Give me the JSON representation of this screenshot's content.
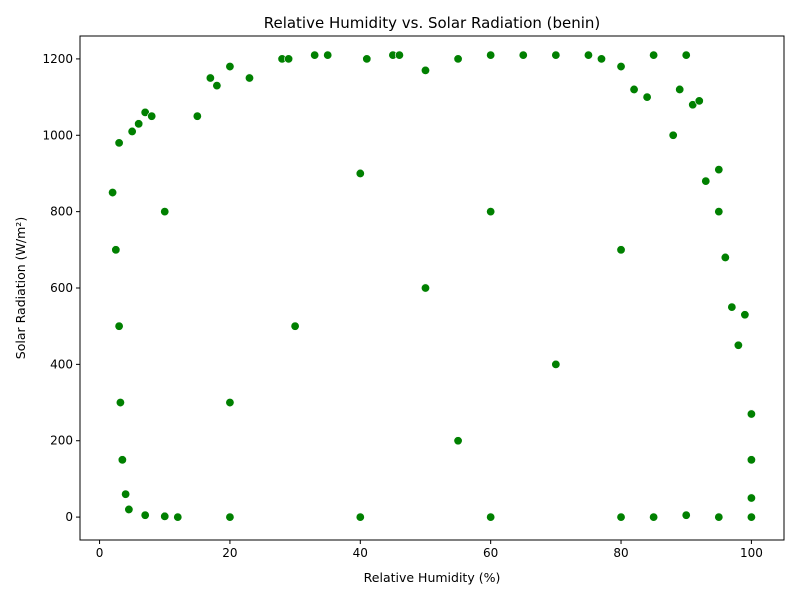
{
  "chart_data": {
    "type": "scatter",
    "title": "Relative Humidity vs. Solar Radiation (benin)",
    "xlabel": "Relative Humidity (%)",
    "ylabel": "Solar Radiation (W/m²)",
    "xlim": [
      -3,
      105
    ],
    "ylim": [
      -60,
      1260
    ],
    "xticks": [
      0,
      20,
      40,
      60,
      80,
      100
    ],
    "yticks": [
      0,
      200,
      400,
      600,
      800,
      1000,
      1200
    ],
    "xtick_labels": [
      "0",
      "20",
      "40",
      "60",
      "80",
      "100"
    ],
    "ytick_labels": [
      "0",
      "200",
      "400",
      "600",
      "800",
      "1000",
      "1200"
    ],
    "grid": false,
    "legend": "none",
    "marker_color": "#008000",
    "marker_edge_color": "#ffffff",
    "series": [
      {
        "values": [
          {
            "x": 2,
            "y": 850
          },
          {
            "x": 2.5,
            "y": 700
          },
          {
            "x": 3,
            "y": 980
          },
          {
            "x": 3,
            "y": 500
          },
          {
            "x": 3.2,
            "y": 300
          },
          {
            "x": 3.5,
            "y": 150
          },
          {
            "x": 4,
            "y": 60
          },
          {
            "x": 4.5,
            "y": 20
          },
          {
            "x": 5,
            "y": 1010
          },
          {
            "x": 6,
            "y": 1030
          },
          {
            "x": 7,
            "y": 1060
          },
          {
            "x": 8,
            "y": 1050
          },
          {
            "x": 7,
            "y": 5
          },
          {
            "x": 10,
            "y": 2
          },
          {
            "x": 12,
            "y": 0
          },
          {
            "x": 15,
            "y": 1050
          },
          {
            "x": 17,
            "y": 1150
          },
          {
            "x": 18,
            "y": 1130
          },
          {
            "x": 20,
            "y": 1180
          },
          {
            "x": 23,
            "y": 1150
          },
          {
            "x": 28,
            "y": 1200
          },
          {
            "x": 29,
            "y": 1200
          },
          {
            "x": 33,
            "y": 1210
          },
          {
            "x": 35,
            "y": 1210
          },
          {
            "x": 41,
            "y": 1200
          },
          {
            "x": 45,
            "y": 1210
          },
          {
            "x": 46,
            "y": 1210
          },
          {
            "x": 50,
            "y": 1170
          },
          {
            "x": 55,
            "y": 1200
          },
          {
            "x": 60,
            "y": 1210
          },
          {
            "x": 65,
            "y": 1210
          },
          {
            "x": 70,
            "y": 1210
          },
          {
            "x": 75,
            "y": 1210
          },
          {
            "x": 77,
            "y": 1200
          },
          {
            "x": 80,
            "y": 1180
          },
          {
            "x": 82,
            "y": 1120
          },
          {
            "x": 84,
            "y": 1100
          },
          {
            "x": 85,
            "y": 1210
          },
          {
            "x": 88,
            "y": 1000
          },
          {
            "x": 89,
            "y": 1120
          },
          {
            "x": 90,
            "y": 1210
          },
          {
            "x": 91,
            "y": 1080
          },
          {
            "x": 92,
            "y": 1090
          },
          {
            "x": 93,
            "y": 880
          },
          {
            "x": 95,
            "y": 910
          },
          {
            "x": 95,
            "y": 800
          },
          {
            "x": 96,
            "y": 680
          },
          {
            "x": 97,
            "y": 550
          },
          {
            "x": 98,
            "y": 450
          },
          {
            "x": 99,
            "y": 530
          },
          {
            "x": 100,
            "y": 270
          },
          {
            "x": 100,
            "y": 150
          },
          {
            "x": 100,
            "y": 50
          },
          {
            "x": 100,
            "y": 0
          },
          {
            "x": 95,
            "y": 0
          },
          {
            "x": 90,
            "y": 5
          },
          {
            "x": 85,
            "y": 0
          },
          {
            "x": 80,
            "y": 0
          },
          {
            "x": 60,
            "y": 0
          },
          {
            "x": 40,
            "y": 0
          },
          {
            "x": 20,
            "y": 0
          },
          {
            "x": 50,
            "y": 600
          },
          {
            "x": 30,
            "y": 500
          },
          {
            "x": 70,
            "y": 400
          },
          {
            "x": 60,
            "y": 800
          },
          {
            "x": 40,
            "y": 900
          },
          {
            "x": 80,
            "y": 700
          },
          {
            "x": 20,
            "y": 300
          },
          {
            "x": 10,
            "y": 800
          },
          {
            "x": 55,
            "y": 200
          }
        ]
      }
    ]
  }
}
